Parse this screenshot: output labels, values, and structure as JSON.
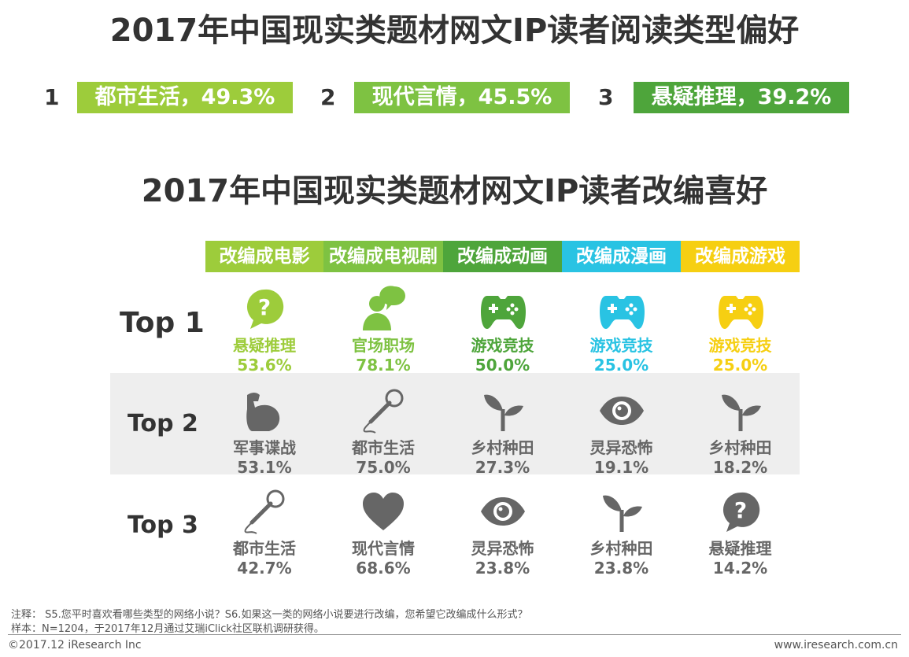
{
  "title": "2017年中国现实类题材网文IP读者阅读类型偏好",
  "reading_top": [
    {
      "rank": "1",
      "label": "都市生活，49.3%",
      "color": "#9dcc3b"
    },
    {
      "rank": "2",
      "label": "现代言情，45.5%",
      "color": "#7ec242"
    },
    {
      "rank": "3",
      "label": "悬疑推理，39.2%",
      "color": "#4ea53b"
    }
  ],
  "subtitle": "2017年中国现实类题材网文IP读者改编喜好",
  "columns": [
    {
      "label": "改编成电影",
      "color": "#9dcc3b"
    },
    {
      "label": "改编成电视剧",
      "color": "#7ec242"
    },
    {
      "label": "改编成动画",
      "color": "#4ea53b"
    },
    {
      "label": "改编成漫画",
      "color": "#29c3e3"
    },
    {
      "label": "改编成游戏",
      "color": "#f6cf12"
    }
  ],
  "rows": [
    "Top 1",
    "Top 2",
    "Top 3"
  ],
  "chart_data": {
    "type": "table",
    "columns": [
      "改编成电影",
      "改编成电视剧",
      "改编成动画",
      "改编成漫画",
      "改编成游戏"
    ],
    "rows": [
      {
        "rank": "Top 1",
        "cells": [
          {
            "category": "悬疑推理",
            "value": "53.6%",
            "icon": "question-bubble-icon"
          },
          {
            "category": "官场职场",
            "value": "78.1%",
            "icon": "person-chat-icon"
          },
          {
            "category": "游戏竞技",
            "value": "50.0%",
            "icon": "gamepad-icon"
          },
          {
            "category": "游戏竞技",
            "value": "25.0%",
            "icon": "gamepad-icon"
          },
          {
            "category": "游戏竞技",
            "value": "25.0%",
            "icon": "gamepad-icon"
          }
        ]
      },
      {
        "rank": "Top 2",
        "cells": [
          {
            "category": "军事谍战",
            "value": "53.1%",
            "icon": "muscle-arm-icon"
          },
          {
            "category": "都市生活",
            "value": "75.0%",
            "icon": "microphone-icon"
          },
          {
            "category": "乡村种田",
            "value": "27.3%",
            "icon": "sprout-icon"
          },
          {
            "category": "灵异恐怖",
            "value": "19.1%",
            "icon": "eye-icon"
          },
          {
            "category": "乡村种田",
            "value": "18.2%",
            "icon": "sprout-icon"
          }
        ]
      },
      {
        "rank": "Top 3",
        "cells": [
          {
            "category": "都市生活",
            "value": "42.7%",
            "icon": "microphone-icon"
          },
          {
            "category": "现代言情",
            "value": "68.6%",
            "icon": "heart-icon"
          },
          {
            "category": "灵异恐怖",
            "value": "23.8%",
            "icon": "eye-icon"
          },
          {
            "category": "乡村种田",
            "value": "23.8%",
            "icon": "sprout-icon"
          },
          {
            "category": "悬疑推理",
            "value": "14.2%",
            "icon": "question-bubble-icon"
          }
        ]
      }
    ]
  },
  "notes": {
    "note1": "注释： S5.您平时喜欢看哪些类型的网络小说？S6.如果这一类的网络小说要进行改编，您希望它改编成什么形式？",
    "note2": "样本：N=1204，于2017年12月通过艾瑞iClick社区联机调研获得。"
  },
  "footer": {
    "left": "©2017.12 iResearch Inc",
    "right": "www.iresearch.com.cn"
  },
  "colors": {
    "row_top2_top3": "#666666",
    "band": "#eeeeee"
  }
}
